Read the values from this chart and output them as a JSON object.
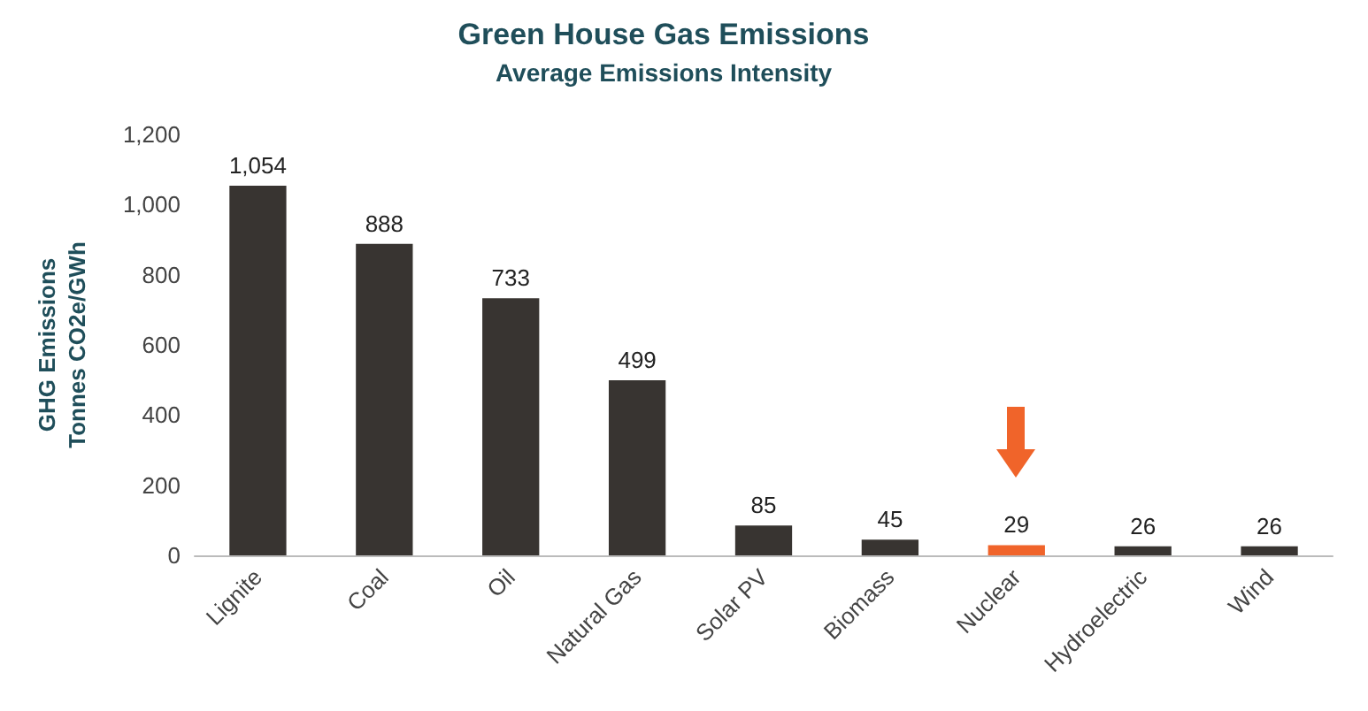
{
  "chart_data": {
    "type": "bar",
    "title": "Green House Gas Emissions",
    "subtitle": "Average Emissions Intensity",
    "ylabel": "GHG Emissions\nTonnes CO2e/GWh",
    "categories": [
      "Lignite",
      "Coal",
      "Oil",
      "Natural Gas",
      "Solar PV",
      "Biomass",
      "Nuclear",
      "Hydroelectric",
      "Wind"
    ],
    "values": [
      1054,
      888,
      733,
      499,
      85,
      45,
      29,
      26,
      26
    ],
    "colors": [
      "#383431",
      "#383431",
      "#383431",
      "#383431",
      "#383431",
      "#383431",
      "#f0642a",
      "#383431",
      "#383431"
    ],
    "value_labels": [
      "1,054",
      "888",
      "733",
      "499",
      "85",
      "45",
      "29",
      "26",
      "26"
    ],
    "ylim": [
      0,
      1200
    ],
    "yticks": [
      0,
      200,
      400,
      600,
      800,
      {
        "value": 1000,
        "label": "1,000"
      },
      {
        "value": 1200,
        "label": "1,200"
      }
    ],
    "grid": false
  }
}
